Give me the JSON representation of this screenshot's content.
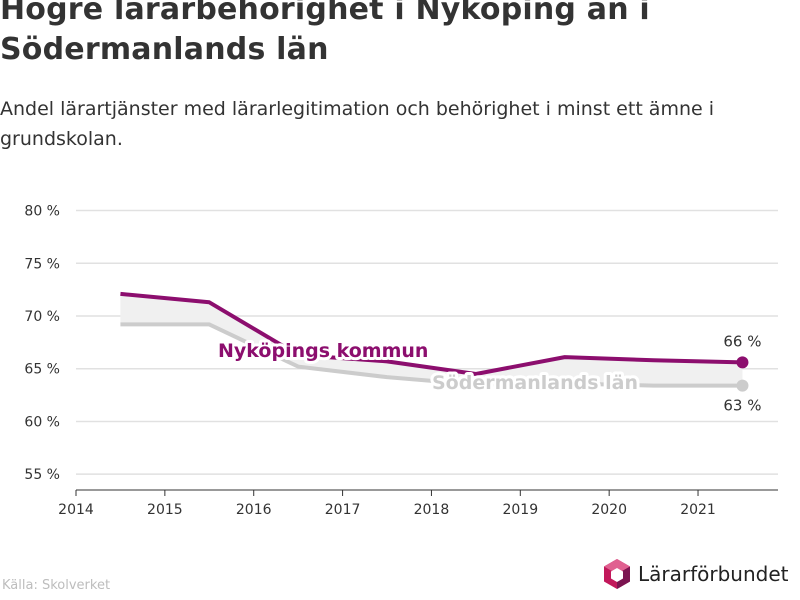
{
  "title": "Högre lärarbehörighet i Nyköping än i Södermanlands län",
  "subtitle": "Andel lärartjänster med lärarlegitimation och behörighet i minst ett ämne i grundskolan.",
  "source": "Källa: Skolverket",
  "logo_text": "Lärarförbundet",
  "colors": {
    "nykoping": "#8c0e6e",
    "sodermanland": "#cccccc",
    "band": "#f0f0f0",
    "grid": "#e1e1e1",
    "axis": "#333333"
  },
  "chart_data": {
    "type": "line",
    "x_ticks": [
      2014,
      2015,
      2016,
      2017,
      2018,
      2019,
      2020,
      2021
    ],
    "x_tick_labels": [
      "2014",
      "2015",
      "2016",
      "2017",
      "2018",
      "2019",
      "2020",
      "2021"
    ],
    "xlim": [
      2014,
      2021.9
    ],
    "y_ticks": [
      55,
      60,
      65,
      70,
      75,
      80
    ],
    "y_tick_labels": [
      "55 %",
      "60 %",
      "65 %",
      "70 %",
      "75 %",
      "80 %"
    ],
    "ylim": [
      53.5,
      81
    ],
    "grid": true,
    "series": [
      {
        "name": "Nyköpings kommun",
        "x": [
          2014.5,
          2015.5,
          2016.5,
          2017.5,
          2018.5,
          2019.5,
          2020.5,
          2021.5
        ],
        "values": [
          72.1,
          71.3,
          66.3,
          65.7,
          64.5,
          66.1,
          65.8,
          65.6
        ],
        "end_label": "66 %"
      },
      {
        "name": "Södermanlands län",
        "x": [
          2014.5,
          2015.5,
          2016.5,
          2017.5,
          2018.5,
          2019.5,
          2020.5,
          2021.5
        ],
        "values": [
          69.2,
          69.2,
          65.2,
          64.2,
          63.5,
          63.6,
          63.4,
          63.4
        ],
        "end_label": "63 %"
      }
    ]
  }
}
